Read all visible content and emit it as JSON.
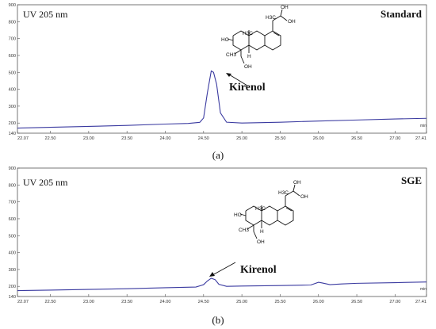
{
  "colors": {
    "trace": "#3a3aa0",
    "axis": "#555555",
    "text": "#111111"
  },
  "chart_data": [
    {
      "type": "line",
      "corner_label_left": "UV 205 nm",
      "corner_label_right": "Standard",
      "peak_label": "Kirenol",
      "x_unit": "min",
      "caption": "(a)",
      "xlim": [
        22.07,
        27.41
      ],
      "ylim": [
        140,
        900
      ],
      "x_ticks": [
        "22.07",
        "22.50",
        "23.00",
        "23.50",
        "24.00",
        "24.50",
        "25.00",
        "25.50",
        "26.00",
        "26.50",
        "27.00",
        "27.41"
      ],
      "y_ticks": [
        "900",
        "800",
        "700",
        "600",
        "500",
        "400",
        "300",
        "200",
        "140"
      ],
      "series": [
        {
          "x": [
            22.07,
            22.5,
            23.0,
            23.5,
            24.0,
            24.3,
            24.45,
            24.5,
            24.55,
            24.6,
            24.63,
            24.67,
            24.72,
            24.8,
            25.0,
            25.5,
            26.0,
            26.5,
            27.0,
            27.41
          ],
          "y": [
            170,
            175,
            180,
            186,
            194,
            198,
            204,
            230,
            380,
            508,
            500,
            430,
            260,
            205,
            200,
            205,
            212,
            218,
            224,
            228
          ]
        }
      ],
      "structure_labels": {
        "ho": "HO",
        "h3c_top": "H3C",
        "oh_top": "OH",
        "oh_end": "OH",
        "h3c_mid": "H3C",
        "h": "H",
        "ch3": "CH3",
        "oh_bottom": "OH"
      }
    },
    {
      "type": "line",
      "corner_label_left": "UV 205 nm",
      "corner_label_right": "SGE",
      "peak_label": "Kirenol",
      "x_unit": "min",
      "caption": "(b)",
      "xlim": [
        22.07,
        27.41
      ],
      "ylim": [
        140,
        900
      ],
      "x_ticks": [
        "22.07",
        "22.50",
        "23.00",
        "23.50",
        "24.00",
        "24.50",
        "25.00",
        "25.50",
        "26.00",
        "26.50",
        "27.00",
        "27.41"
      ],
      "y_ticks": [
        "900",
        "800",
        "700",
        "600",
        "500",
        "400",
        "300",
        "200",
        "140"
      ],
      "series": [
        {
          "x": [
            22.07,
            22.5,
            23.0,
            23.5,
            24.0,
            24.4,
            24.5,
            24.55,
            24.6,
            24.65,
            24.7,
            24.8,
            25.0,
            25.5,
            25.9,
            26.0,
            26.05,
            26.15,
            26.3,
            26.5,
            27.0,
            27.41
          ],
          "y": [
            175,
            178,
            182,
            186,
            192,
            196,
            210,
            232,
            248,
            240,
            212,
            200,
            202,
            205,
            208,
            224,
            220,
            210,
            214,
            218,
            222,
            226
          ]
        }
      ],
      "structure_labels": {
        "ho": "HO",
        "h3c_top": "H3C",
        "oh_top": "OH",
        "oh_end": "OH",
        "h3c_mid": "H3C",
        "h": "H",
        "ch3": "CH3",
        "oh_bottom": "OH"
      }
    }
  ]
}
